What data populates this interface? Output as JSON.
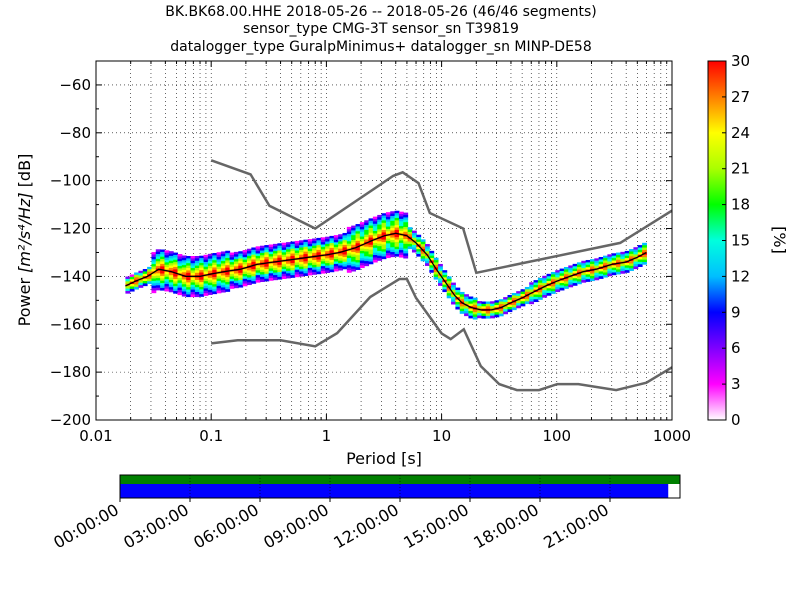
{
  "chart_data": {
    "type": "heatmap",
    "title_lines": [
      "BK.BK68.00.HHE   2018-05-26 -- 2018-05-26  (46/46 segments)",
      "sensor_type CMG-3T sensor_sn T39819",
      "datalogger_type GuralpMinimus+ datalogger_sn MINP-DE58"
    ],
    "xlabel": "Period [s]",
    "ylabel_prefix": "Power ",
    "ylabel_math": "[m²/s⁴/Hz]",
    "ylabel_suffix": " [dB]",
    "x_scale": "log",
    "xlim": [
      0.01,
      1000
    ],
    "ylim": [
      -200,
      -50
    ],
    "x_ticks": [
      0.01,
      0.1,
      1,
      10,
      100,
      1000
    ],
    "x_tick_labels": [
      "0.01",
      "0.1",
      "1",
      "10",
      "100",
      "1000"
    ],
    "y_ticks": [
      -200,
      -180,
      -160,
      -140,
      -120,
      -100,
      -80,
      -60
    ],
    "y_tick_labels": [
      "−200",
      "−180",
      "−160",
      "−140",
      "−120",
      "−100",
      "−80",
      "−60"
    ],
    "grid": "dotted",
    "colorbar": {
      "label": "[%]",
      "range": [
        0,
        30
      ],
      "ticks": [
        "0",
        "3",
        "6",
        "9",
        "12",
        "15",
        "18",
        "21",
        "24",
        "27",
        "30"
      ],
      "colormap": "pqlx"
    },
    "psd_mode": {
      "x": [
        0.018,
        0.022,
        0.028,
        0.035,
        0.045,
        0.06,
        0.08,
        0.1,
        0.13,
        0.18,
        0.25,
        0.35,
        0.5,
        0.7,
        1.0,
        1.3,
        1.8,
        2.5,
        3.2,
        4.0,
        5.0,
        6.0,
        7.5,
        9.0,
        11,
        13,
        15,
        18,
        22,
        27,
        33,
        40,
        50,
        60,
        80,
        100,
        130,
        170,
        220,
        300,
        400,
        500,
        600
      ],
      "y": [
        -144,
        -142,
        -140,
        -137,
        -138,
        -140,
        -140,
        -139,
        -138,
        -137,
        -135,
        -134,
        -133,
        -132,
        -131,
        -130,
        -128,
        -125,
        -123,
        -122,
        -123,
        -126,
        -131,
        -137,
        -143,
        -148,
        -151,
        -153,
        -154,
        -154,
        -153,
        -151,
        -149,
        -147,
        -144,
        -142,
        -140,
        -138,
        -137,
        -135,
        -134,
        -132,
        -130
      ]
    },
    "nhnm": {
      "x": [
        0.1,
        0.22,
        0.32,
        0.8,
        3.8,
        4.6,
        6.3,
        7.9,
        15.4,
        20,
        354.8,
        1000
      ],
      "y": [
        -91.5,
        -97.4,
        -110.5,
        -120,
        -98,
        -96.5,
        -101,
        -113.5,
        -120,
        -138.5,
        -126,
        -112.5
      ]
    },
    "nlnm": {
      "x": [
        0.1,
        0.17,
        0.4,
        0.8,
        1.24,
        2.4,
        4.3,
        5.0,
        6.0,
        10.0,
        12.0,
        15.6,
        21.9,
        31.6,
        45.0,
        70.0,
        101.0,
        154.0,
        328.0,
        600.0,
        1000.0
      ],
      "y": [
        -168,
        -166.7,
        -166.7,
        -169.2,
        -163.7,
        -148.6,
        -141.1,
        -141.1,
        -149,
        -163.8,
        -166.2,
        -162.1,
        -177.5,
        -185,
        -187.5,
        -187.5,
        -185,
        -185,
        -187.5,
        -184.4,
        -178
      ]
    },
    "coverage": {
      "tick_labels": [
        "00:00:00",
        "03:00:00",
        "06:00:00",
        "09:00:00",
        "12:00:00",
        "15:00:00",
        "18:00:00",
        "21:00:00"
      ],
      "top_bar_fraction": 1.0,
      "bottom_bar_fraction": 0.979,
      "top_bar_color": "#008000",
      "bottom_bar_color": "#0000ff"
    }
  }
}
